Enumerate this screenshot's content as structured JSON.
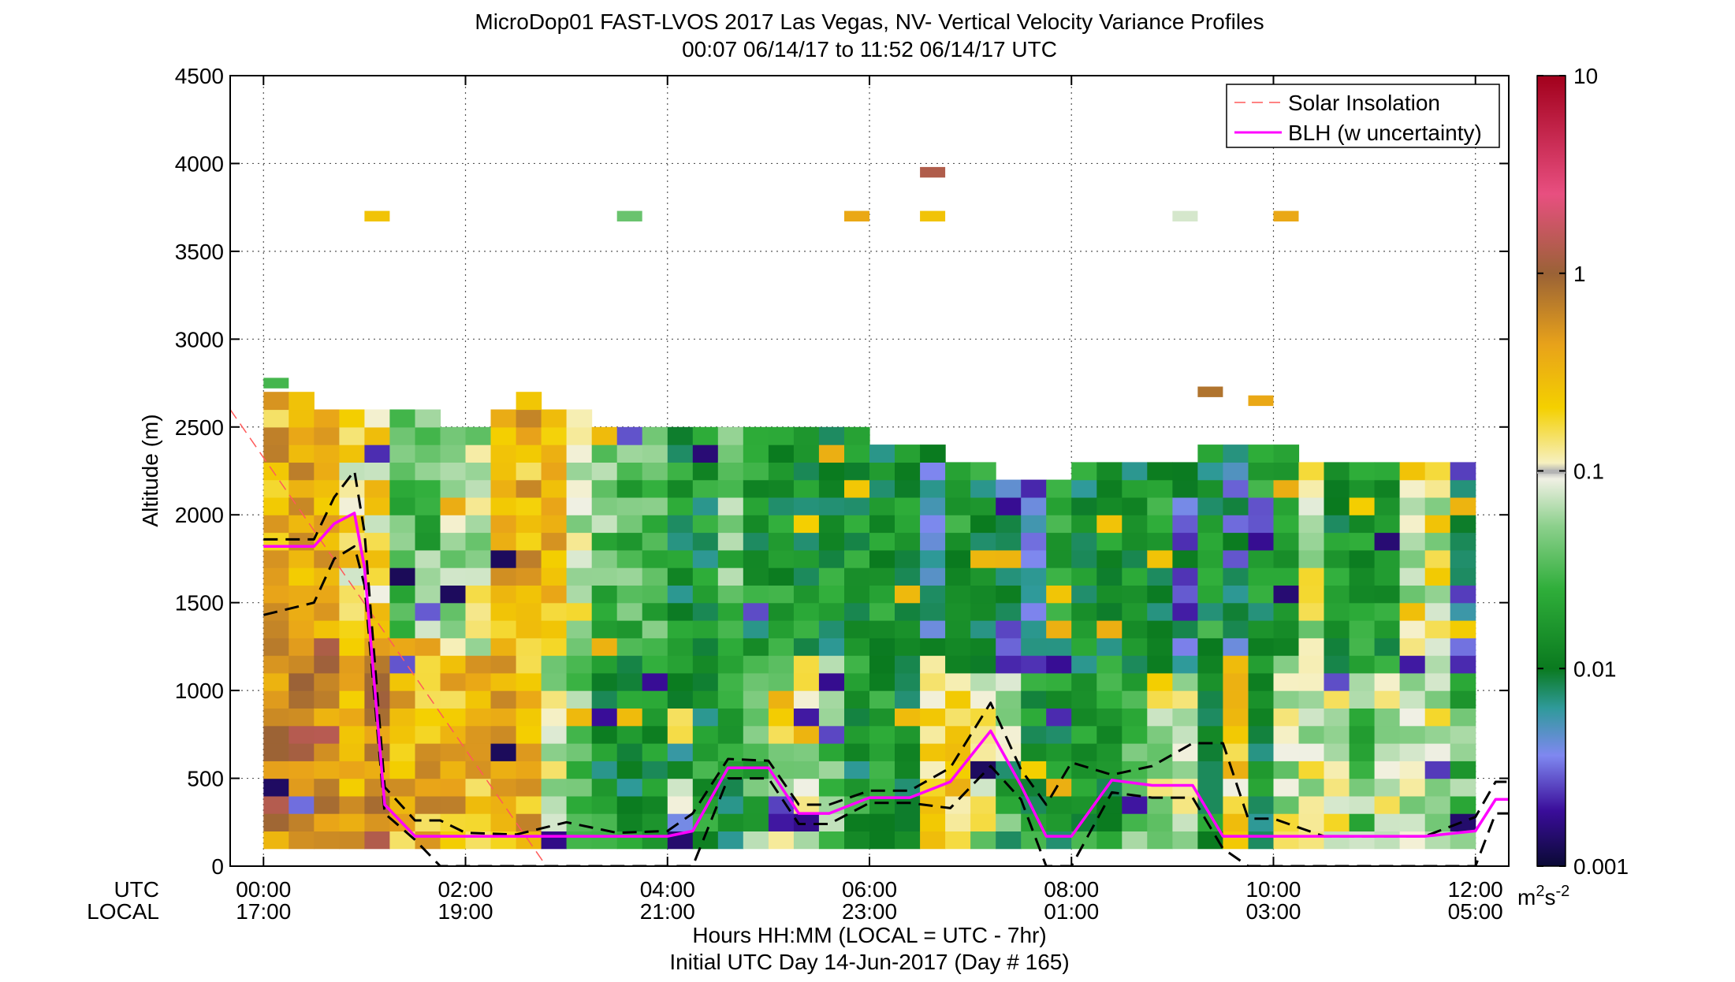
{
  "chart_data": {
    "type": "heatmap",
    "title": "MicroDop01 FAST-LVOS 2017 Las Vegas, NV- Vertical Velocity Variance Profiles",
    "subtitle": "00:07 06/14/17 to 11:52 06/14/17  UTC",
    "ylabel": "Altitude (m)",
    "xlabel": "Hours HH:MM  (LOCAL = UTC - 7hr)",
    "xlabel2": "Initial UTC Day 14-Jun-2017 (Day # 165)",
    "row_label_utc": "UTC",
    "row_label_local": "LOCAL",
    "xlim": [
      -0.33,
      12.33
    ],
    "ylim": [
      0,
      4500
    ],
    "grid": true,
    "x_ticks": [
      0,
      2,
      4,
      6,
      8,
      10,
      12
    ],
    "x_tick_labels_utc": [
      "00:00",
      "02:00",
      "04:00",
      "06:00",
      "08:00",
      "10:00",
      "12:00"
    ],
    "x_tick_labels_local": [
      "17:00",
      "19:00",
      "21:00",
      "23:00",
      "01:00",
      "03:00",
      "05:00"
    ],
    "y_ticks": [
      0,
      500,
      1000,
      1500,
      2000,
      2500,
      3000,
      3500,
      4000,
      4500
    ],
    "y_tick_labels": [
      "0",
      "500",
      "1000",
      "1500",
      "2000",
      "2500",
      "3000",
      "3500",
      "4000",
      "4500"
    ],
    "colorbar": {
      "scale": "log",
      "range": [
        0.001,
        10
      ],
      "tick_values": [
        0.001,
        0.01,
        0.1,
        1,
        10
      ],
      "tick_labels": [
        "0.001",
        "0.01",
        "0.1",
        "1",
        "10"
      ],
      "unit_base": "m",
      "unit_sup1": "2",
      "unit_mid": "s",
      "unit_sup2": "-2"
    },
    "legend": {
      "position": "top-right",
      "entries": [
        {
          "label": "Solar Insolation",
          "color": "#ff5a5a",
          "style": "dashed"
        },
        {
          "label": "BLH (w uncertainty)",
          "color": "#ff00ff",
          "style": "solid"
        }
      ]
    },
    "variance_field": {
      "time_step_hr": 0.25,
      "alt_step_m": 100,
      "profiles": [
        {
          "t": 0.125,
          "top": 2700,
          "lowAlt": "warm-dark",
          "upAlt": "warm"
        },
        {
          "t": 0.375,
          "top": 2700,
          "lowAlt": "warm-dark",
          "upAlt": "warm"
        },
        {
          "t": 0.625,
          "top": 2600,
          "lowAlt": "warm-dark",
          "upAlt": "warm"
        },
        {
          "t": 0.875,
          "top": 2600,
          "lowAlt": "warm",
          "upAlt": "warm-light"
        },
        {
          "t": 1.125,
          "top": 2600,
          "lowAlt": "warm-dark",
          "upAlt": "warm-light"
        },
        {
          "t": 1.375,
          "top": 2600,
          "lowAlt": "warm",
          "upAlt": "light-green"
        },
        {
          "t": 1.625,
          "top": 2600,
          "lowAlt": "warm",
          "upAlt": "light-green"
        },
        {
          "t": 1.875,
          "top": 2500,
          "lowAlt": "warm",
          "upAlt": "light"
        },
        {
          "t": 2.125,
          "top": 2500,
          "lowAlt": "warm",
          "upAlt": "light"
        },
        {
          "t": 2.375,
          "top": 2600,
          "lowAlt": "warm",
          "upAlt": "warm"
        },
        {
          "t": 2.625,
          "top": 2700,
          "lowAlt": "warm",
          "upAlt": "warm"
        },
        {
          "t": 2.875,
          "top": 2600,
          "lowAlt": "light",
          "upAlt": "warm"
        },
        {
          "t": 3.125,
          "top": 2600,
          "lowAlt": "light-green",
          "upAlt": "light"
        },
        {
          "t": 3.375,
          "top": 2500,
          "lowAlt": "green",
          "upAlt": "light-green"
        },
        {
          "t": 3.625,
          "top": 2500,
          "lowAlt": "green",
          "upAlt": "light-green"
        },
        {
          "t": 3.875,
          "top": 2500,
          "lowAlt": "green",
          "upAlt": "light-green"
        },
        {
          "t": 4.125,
          "top": 2500,
          "lowAlt": "mixed",
          "upAlt": "green"
        },
        {
          "t": 4.375,
          "top": 2500,
          "lowAlt": "green",
          "upAlt": "green"
        },
        {
          "t": 4.625,
          "top": 2500,
          "lowAlt": "green",
          "upAlt": "light-green"
        },
        {
          "t": 4.875,
          "top": 2500,
          "lowAlt": "light-green",
          "upAlt": "green"
        },
        {
          "t": 5.125,
          "top": 2500,
          "lowAlt": "light",
          "upAlt": "green"
        },
        {
          "t": 5.375,
          "top": 2500,
          "lowAlt": "light",
          "upAlt": "green"
        },
        {
          "t": 5.625,
          "top": 2500,
          "lowAlt": "light-green",
          "upAlt": "green"
        },
        {
          "t": 5.875,
          "top": 2500,
          "lowAlt": "green",
          "upAlt": "green"
        },
        {
          "t": 6.125,
          "top": 2400,
          "lowAlt": "green",
          "upAlt": "green"
        },
        {
          "t": 6.375,
          "top": 2400,
          "lowAlt": "green",
          "upAlt": "green"
        },
        {
          "t": 6.625,
          "top": 2400,
          "lowAlt": "yellow",
          "upAlt": "blue"
        },
        {
          "t": 6.875,
          "top": 2300,
          "lowAlt": "yellow",
          "upAlt": "green"
        },
        {
          "t": 7.125,
          "top": 2300,
          "lowAlt": "light",
          "upAlt": "green"
        },
        {
          "t": 7.375,
          "top": 2200,
          "lowAlt": "mixed",
          "upAlt": "blue"
        },
        {
          "t": 7.625,
          "top": 2200,
          "lowAlt": "green",
          "upAlt": "blue"
        },
        {
          "t": 7.875,
          "top": 2200,
          "lowAlt": "green",
          "upAlt": "green"
        },
        {
          "t": 8.125,
          "top": 2300,
          "lowAlt": "green",
          "upAlt": "green"
        },
        {
          "t": 8.375,
          "top": 2300,
          "lowAlt": "green",
          "upAlt": "green"
        },
        {
          "t": 8.625,
          "top": 2300,
          "lowAlt": "light-green",
          "upAlt": "green"
        },
        {
          "t": 8.875,
          "top": 2300,
          "lowAlt": "light",
          "upAlt": "green"
        },
        {
          "t": 9.125,
          "top": 2300,
          "lowAlt": "light",
          "upAlt": "blue"
        },
        {
          "t": 9.375,
          "top": 2400,
          "lowAlt": "green",
          "upAlt": "green"
        },
        {
          "t": 9.625,
          "top": 2400,
          "lowAlt": "yellow",
          "upAlt": "blue"
        },
        {
          "t": 9.875,
          "top": 2400,
          "lowAlt": "green",
          "upAlt": "green"
        },
        {
          "t": 10.125,
          "top": 2400,
          "lowAlt": "light",
          "upAlt": "green"
        },
        {
          "t": 10.375,
          "top": 2300,
          "lowAlt": "light",
          "upAlt": "light"
        },
        {
          "t": 10.625,
          "top": 2300,
          "lowAlt": "light",
          "upAlt": "green"
        },
        {
          "t": 10.875,
          "top": 2300,
          "lowAlt": "light-green",
          "upAlt": "green"
        },
        {
          "t": 11.125,
          "top": 2300,
          "lowAlt": "light",
          "upAlt": "green"
        },
        {
          "t": 11.375,
          "top": 2300,
          "lowAlt": "light",
          "upAlt": "light"
        },
        {
          "t": 11.625,
          "top": 2300,
          "lowAlt": "light",
          "upAlt": "light"
        },
        {
          "t": 11.875,
          "top": 2300,
          "lowAlt": "light-green",
          "upAlt": "blue"
        }
      ],
      "isolated_cells": [
        {
          "t": 0.125,
          "alt": 2750,
          "value": 0.03
        },
        {
          "t": 1.125,
          "alt": 3700,
          "value": 0.25
        },
        {
          "t": 3.625,
          "alt": 3700,
          "value": 0.04
        },
        {
          "t": 5.875,
          "alt": 3700,
          "value": 0.4
        },
        {
          "t": 6.625,
          "alt": 3950,
          "value": 1.3
        },
        {
          "t": 6.625,
          "alt": 3700,
          "value": 0.25
        },
        {
          "t": 9.125,
          "alt": 3700,
          "value": 0.08
        },
        {
          "t": 10.125,
          "alt": 3700,
          "value": 0.4
        },
        {
          "t": 9.375,
          "alt": 2700,
          "value": 0.8
        },
        {
          "t": 9.875,
          "alt": 2650,
          "value": 0.4
        }
      ]
    },
    "series": [
      {
        "name": "BLH (w uncertainty)",
        "x": [
          0.0,
          0.5,
          0.7,
          0.9,
          1.0,
          1.2,
          1.5,
          1.75,
          2.0,
          2.5,
          3.0,
          3.5,
          4.0,
          4.25,
          4.6,
          5.0,
          5.3,
          5.6,
          6.0,
          6.4,
          6.8,
          7.2,
          7.5,
          7.75,
          8.0,
          8.4,
          8.8,
          9.2,
          9.5,
          9.75,
          10.0,
          10.5,
          11.0,
          11.5,
          12.0,
          12.2,
          12.33
        ],
        "y": [
          1820,
          1820,
          1950,
          2010,
          1700,
          350,
          170,
          170,
          170,
          170,
          170,
          170,
          170,
          200,
          560,
          560,
          300,
          300,
          390,
          390,
          480,
          770,
          460,
          170,
          170,
          490,
          460,
          460,
          170,
          170,
          170,
          170,
          170,
          170,
          200,
          380,
          380
        ]
      },
      {
        "name": "BLH upper uncertainty",
        "x": [
          0.0,
          0.5,
          0.7,
          0.9,
          1.0,
          1.2,
          1.5,
          1.75,
          2.0,
          2.5,
          3.0,
          3.5,
          4.0,
          4.25,
          4.6,
          5.0,
          5.3,
          5.6,
          6.0,
          6.4,
          6.8,
          7.2,
          7.5,
          7.75,
          8.0,
          8.4,
          8.8,
          9.2,
          9.5,
          9.75,
          10.0,
          10.5,
          11.0,
          11.5,
          12.0,
          12.2,
          12.33
        ],
        "y": [
          1860,
          1860,
          2100,
          2250,
          1900,
          450,
          260,
          260,
          190,
          180,
          250,
          190,
          200,
          300,
          610,
          600,
          350,
          350,
          430,
          430,
          560,
          930,
          550,
          350,
          590,
          520,
          570,
          700,
          700,
          270,
          270,
          170,
          170,
          170,
          280,
          480,
          480
        ]
      },
      {
        "name": "BLH lower uncertainty",
        "x": [
          0.0,
          0.5,
          0.7,
          0.9,
          1.0,
          1.2,
          1.5,
          1.75,
          2.0,
          2.5,
          3.0,
          3.5,
          4.0,
          4.25,
          4.6,
          5.0,
          5.3,
          5.6,
          6.0,
          6.4,
          6.8,
          7.2,
          7.5,
          7.75,
          8.0,
          8.4,
          8.8,
          9.2,
          9.5,
          9.75,
          10.0,
          10.5,
          11.0,
          11.5,
          12.0,
          12.2,
          12.33
        ],
        "y": [
          1430,
          1500,
          1750,
          1820,
          1600,
          300,
          150,
          0,
          0,
          0,
          0,
          0,
          0,
          0,
          500,
          500,
          240,
          240,
          360,
          360,
          330,
          570,
          380,
          0,
          0,
          420,
          390,
          390,
          100,
          0,
          0,
          0,
          0,
          0,
          0,
          300,
          300
        ]
      },
      {
        "name": "Solar Insolation",
        "x": [
          -0.33,
          2.8
        ],
        "y": [
          2600,
          0
        ]
      }
    ]
  }
}
